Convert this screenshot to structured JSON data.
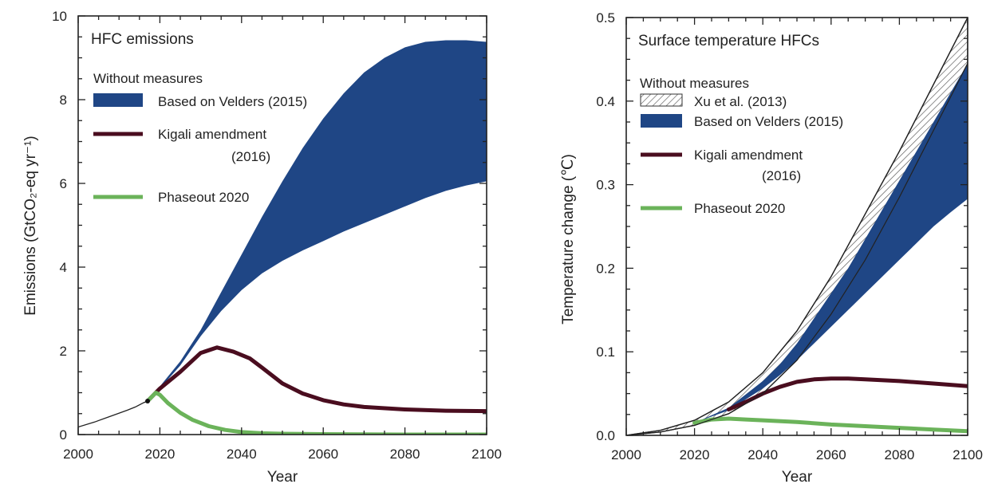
{
  "chart_data": [
    {
      "type": "area",
      "title": "HFC emissions",
      "xlabel": "Year",
      "ylabel": "Emissions (GtCO₂-eq yr⁻¹)",
      "xlim": [
        2000,
        2100
      ],
      "ylim": [
        0,
        10
      ],
      "xticks": [
        "2000",
        "2020",
        "2040",
        "2060",
        "2080",
        "2100"
      ],
      "yticks": [
        "0",
        "2",
        "4",
        "6",
        "8",
        "10"
      ],
      "legend_heading": "Without measures",
      "legend_position": "top-left",
      "historical": {
        "x": [
          2000,
          2004,
          2008,
          2012,
          2014,
          2016,
          2017
        ],
        "y": [
          0.18,
          0.3,
          0.44,
          0.58,
          0.66,
          0.76,
          0.8
        ]
      },
      "series": [
        {
          "name": "Based on Velders (2015)",
          "kind": "band",
          "color": "#1f4685",
          "x": [
            2017,
            2020,
            2025,
            2030,
            2035,
            2040,
            2045,
            2050,
            2055,
            2060,
            2065,
            2070,
            2075,
            2080,
            2085,
            2090,
            2095,
            2100
          ],
          "upper": [
            0.8,
            1.15,
            1.75,
            2.5,
            3.4,
            4.3,
            5.2,
            6.05,
            6.85,
            7.55,
            8.15,
            8.65,
            9.0,
            9.25,
            9.38,
            9.42,
            9.42,
            9.38
          ],
          "lower": [
            0.8,
            1.1,
            1.65,
            2.35,
            2.95,
            3.45,
            3.85,
            4.15,
            4.4,
            4.62,
            4.85,
            5.05,
            5.25,
            5.45,
            5.65,
            5.82,
            5.95,
            6.05
          ]
        },
        {
          "name": "Kigali amendment",
          "name_line2": "(2016)",
          "kind": "line",
          "color": "#4a0d1f",
          "x": [
            2017,
            2020,
            2025,
            2030,
            2034,
            2038,
            2042,
            2045,
            2050,
            2055,
            2060,
            2065,
            2070,
            2080,
            2090,
            2100
          ],
          "y": [
            0.8,
            1.1,
            1.5,
            1.95,
            2.08,
            1.98,
            1.82,
            1.6,
            1.22,
            0.98,
            0.82,
            0.72,
            0.66,
            0.6,
            0.57,
            0.56
          ]
        },
        {
          "name": "Phaseout 2020",
          "kind": "line",
          "color": "#6bb35a",
          "x": [
            2017,
            2019,
            2020,
            2022,
            2025,
            2028,
            2032,
            2036,
            2040,
            2045,
            2050,
            2060,
            2080,
            2100
          ],
          "y": [
            0.8,
            1.0,
            0.95,
            0.75,
            0.52,
            0.35,
            0.2,
            0.11,
            0.06,
            0.03,
            0.02,
            0.01,
            0.0,
            0.0
          ]
        }
      ]
    },
    {
      "type": "area",
      "title": "Surface temperature HFCs",
      "xlabel": "Year",
      "ylabel": "Temperature change (℃)",
      "xlim": [
        2000,
        2100
      ],
      "ylim": [
        0,
        0.5
      ],
      "xticks": [
        "2000",
        "2020",
        "2040",
        "2060",
        "2080",
        "2100"
      ],
      "yticks": [
        "0.0",
        "0.1",
        "0.2",
        "0.3",
        "0.4",
        "0.5"
      ],
      "legend_heading": "Without measures",
      "legend_position": "top-left",
      "series": [
        {
          "name": "Xu et al. (2013)",
          "kind": "hatched-band",
          "color": "#444444",
          "x": [
            2000,
            2010,
            2020,
            2030,
            2040,
            2050,
            2060,
            2070,
            2080,
            2090,
            2100
          ],
          "upper": [
            0.0,
            0.006,
            0.018,
            0.04,
            0.075,
            0.125,
            0.19,
            0.265,
            0.34,
            0.42,
            0.5
          ],
          "lower": [
            0.0,
            0.004,
            0.012,
            0.026,
            0.05,
            0.09,
            0.145,
            0.21,
            0.285,
            0.365,
            0.445
          ]
        },
        {
          "name": "Based on Velders (2015)",
          "kind": "band",
          "color": "#1f4685",
          "x": [
            2000,
            2010,
            2020,
            2030,
            2040,
            2045,
            2050,
            2055,
            2060,
            2065,
            2070,
            2075,
            2080,
            2085,
            2090,
            2095,
            2100
          ],
          "upper": [
            0.0,
            0.005,
            0.015,
            0.033,
            0.065,
            0.085,
            0.11,
            0.14,
            0.17,
            0.2,
            0.235,
            0.27,
            0.305,
            0.34,
            0.375,
            0.41,
            0.445
          ],
          "lower": [
            0.0,
            0.005,
            0.015,
            0.03,
            0.056,
            0.072,
            0.09,
            0.11,
            0.13,
            0.15,
            0.17,
            0.19,
            0.21,
            0.23,
            0.25,
            0.267,
            0.283
          ]
        },
        {
          "name": "Kigali amendment",
          "name_line2": "(2016)",
          "kind": "line",
          "color": "#4a0d1f",
          "x": [
            2030,
            2035,
            2040,
            2045,
            2050,
            2055,
            2060,
            2065,
            2070,
            2080,
            2090,
            2100
          ],
          "y": [
            0.031,
            0.04,
            0.05,
            0.058,
            0.064,
            0.067,
            0.068,
            0.068,
            0.067,
            0.065,
            0.062,
            0.059
          ]
        },
        {
          "name": "Phaseout 2020",
          "kind": "line",
          "color": "#6bb35a",
          "x": [
            2020,
            2025,
            2030,
            2035,
            2040,
            2050,
            2060,
            2070,
            2080,
            2090,
            2100
          ],
          "y": [
            0.015,
            0.019,
            0.02,
            0.019,
            0.018,
            0.016,
            0.013,
            0.011,
            0.009,
            0.007,
            0.005
          ]
        }
      ]
    }
  ]
}
